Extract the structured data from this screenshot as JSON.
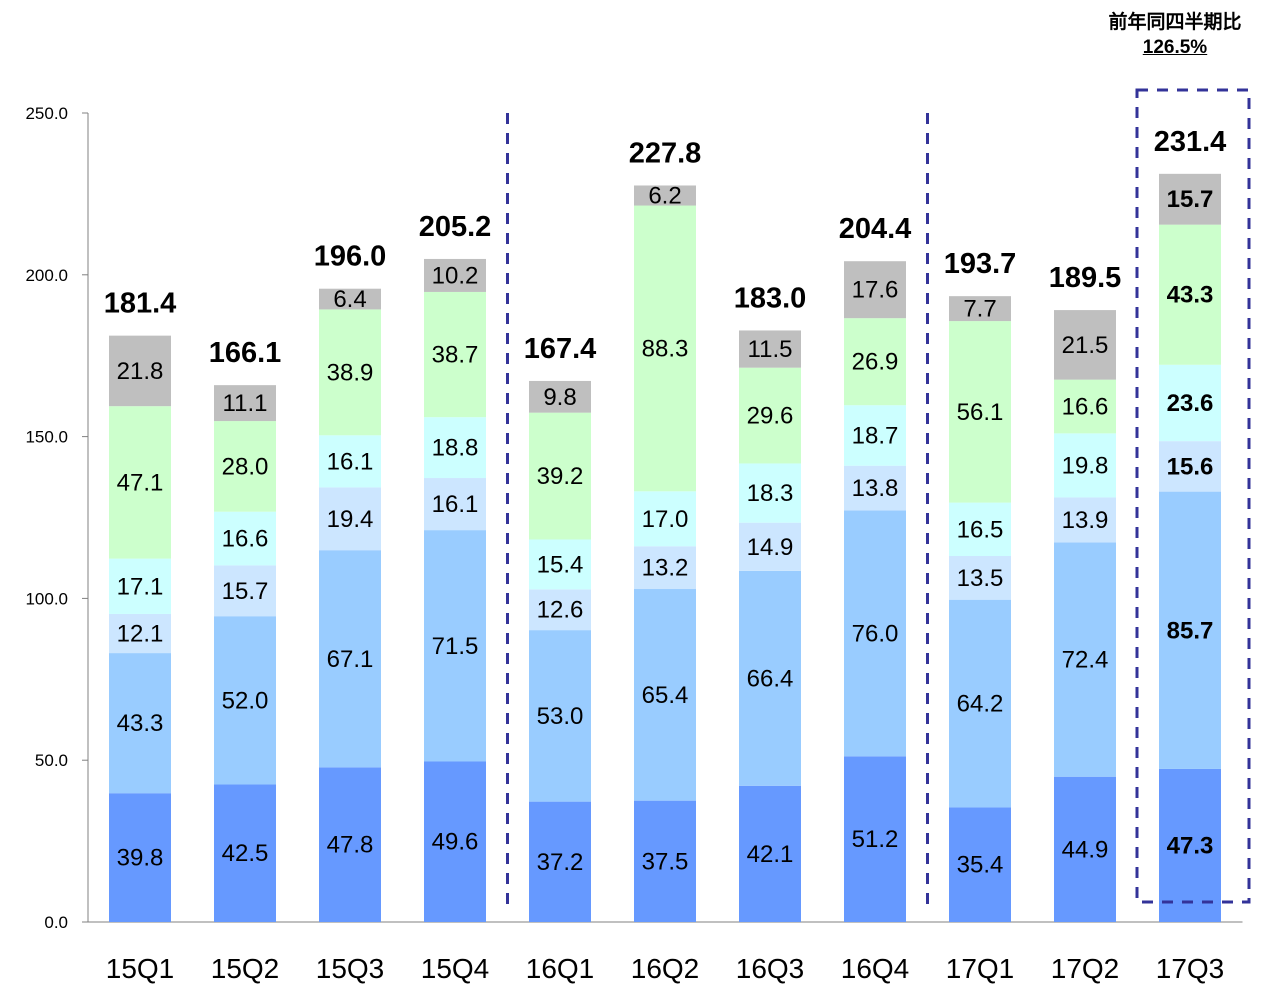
{
  "callout": {
    "title": "前年同四半期比",
    "value": "126.5%"
  },
  "chart_data": {
    "type": "bar",
    "stacked": true,
    "categories": [
      "15Q1",
      "15Q2",
      "15Q3",
      "15Q4",
      "16Q1",
      "16Q2",
      "16Q3",
      "16Q4",
      "17Q1",
      "17Q2",
      "17Q3"
    ],
    "series": [
      {
        "values": [
          39.8,
          42.5,
          47.8,
          49.6,
          37.2,
          37.5,
          42.1,
          51.2,
          35.4,
          44.9,
          47.3
        ],
        "color": "#6699ff"
      },
      {
        "values": [
          43.3,
          52.0,
          67.1,
          71.5,
          53.0,
          65.4,
          66.4,
          76.0,
          64.2,
          72.4,
          85.7
        ],
        "color": "#99ccff"
      },
      {
        "values": [
          12.1,
          15.7,
          19.4,
          16.1,
          12.6,
          13.2,
          14.9,
          13.8,
          13.5,
          13.9,
          15.6
        ],
        "color": "#cce6ff"
      },
      {
        "values": [
          17.1,
          16.6,
          16.1,
          18.8,
          15.4,
          17.0,
          18.3,
          18.7,
          16.5,
          19.8,
          23.6
        ],
        "color": "#ccffff"
      },
      {
        "values": [
          47.1,
          28.0,
          38.9,
          38.7,
          39.2,
          88.3,
          29.6,
          26.9,
          56.1,
          16.6,
          43.3
        ],
        "color": "#ccffcc"
      },
      {
        "values": [
          21.8,
          11.1,
          6.4,
          10.2,
          9.8,
          6.2,
          11.5,
          17.6,
          7.7,
          21.5,
          15.7
        ],
        "color": "#bfbfbf"
      }
    ],
    "totals": [
      "181.4",
      "166.1",
      "196.0",
      "205.2",
      "167.4",
      "227.8",
      "183.0",
      "204.4",
      "193.7",
      "189.5",
      "231.4"
    ],
    "y_ticks": [
      "0.0",
      "50.0",
      "100.0",
      "150.0",
      "200.0",
      "250.0"
    ],
    "ylim": [
      0,
      250
    ],
    "separators_after": [
      "15Q4",
      "16Q4"
    ],
    "highlight": "17Q3",
    "divider_color": "#333399"
  }
}
